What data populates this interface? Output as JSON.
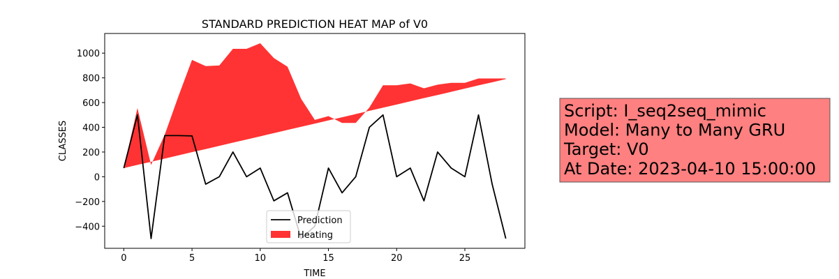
{
  "chart_data": {
    "type": "line-fill",
    "title": "STANDARD PREDICTION HEAT MAP of V0",
    "xlabel": "TIME",
    "ylabel": "CLASSES",
    "x": [
      0,
      1,
      2,
      3,
      4,
      5,
      6,
      7,
      8,
      9,
      10,
      11,
      12,
      13,
      14,
      15,
      16,
      17,
      18,
      19,
      20,
      21,
      22,
      23,
      24,
      25,
      26,
      27,
      28
    ],
    "series": [
      {
        "name": "Prediction",
        "color": "#000000",
        "kind": "line",
        "values": [
          70,
          500,
          -500,
          333,
          333,
          330,
          -60,
          0,
          200,
          0,
          70,
          -195,
          -130,
          -500,
          -400,
          70,
          -130,
          0,
          400,
          500,
          0,
          70,
          -195,
          200,
          70,
          0,
          500,
          -60,
          -500
        ]
      },
      {
        "name": "Heating",
        "color": "#ff0000",
        "kind": "fill",
        "values": [
          70,
          555,
          95,
          340,
          650,
          945,
          895,
          900,
          1035,
          1035,
          1080,
          960,
          890,
          630,
          460,
          490,
          435,
          435,
          560,
          740,
          740,
          755,
          715,
          745,
          760,
          760,
          795,
          795,
          795
        ],
        "lower": [
          70,
          96,
          121,
          147,
          173,
          199,
          224,
          250,
          276,
          301,
          327,
          353,
          379,
          404,
          430,
          456,
          481,
          507,
          533,
          559,
          584,
          610,
          636,
          661,
          687,
          713,
          739,
          764,
          790
        ]
      }
    ],
    "xlim": [
      -1.4,
      29.4
    ],
    "ylim": [
      -579,
      1159
    ],
    "xticks": [
      0,
      5,
      10,
      15,
      20,
      25
    ],
    "yticks": [
      {
        "value": -400,
        "label": "−400"
      },
      {
        "value": -200,
        "label": "−200"
      },
      0,
      200,
      400,
      600,
      800,
      1000
    ],
    "legend": "lower center",
    "annotation": [
      "Script: I_seq2seq_mimic",
      "Model: Many to Many GRU",
      "Target: V0",
      "At Date: 2023-04-10 15:00:00"
    ],
    "annotation_color": "#ff8080"
  }
}
